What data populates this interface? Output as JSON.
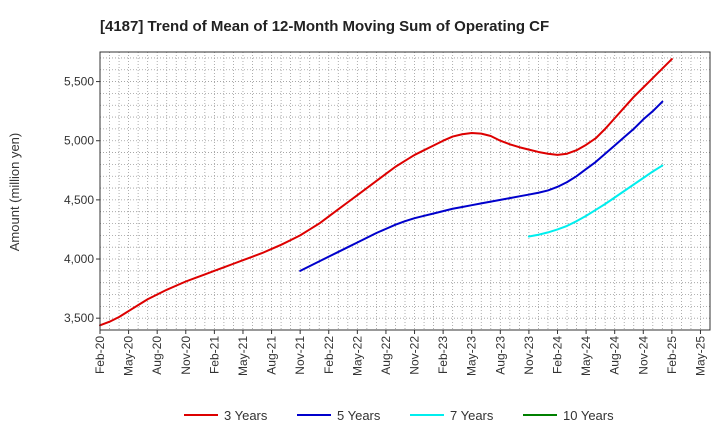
{
  "chart_data": {
    "type": "line",
    "title": "[4187]  Trend of Mean of 12-Month Moving Sum of Operating CF",
    "xlabel": "",
    "ylabel": "Amount (million yen)",
    "ylim": [
      3400,
      5750
    ],
    "yticks": [
      3500,
      4000,
      4500,
      5000,
      5500
    ],
    "ytick_labels": [
      "3,500",
      "4,000",
      "4,500",
      "5,000",
      "5,500"
    ],
    "grid": true,
    "legend_position": "bottom",
    "x_start_month": "Feb-20",
    "x_month_count": 64,
    "x_tick_labels": [
      "Feb-20",
      "May-20",
      "Aug-20",
      "Nov-20",
      "Feb-21",
      "May-21",
      "Aug-21",
      "Nov-21",
      "Feb-22",
      "May-22",
      "Aug-22",
      "Nov-22",
      "Feb-23",
      "May-23",
      "Aug-23",
      "Nov-23",
      "Feb-24",
      "May-24",
      "Aug-24",
      "Nov-24",
      "Feb-25",
      "May-25"
    ],
    "series": [
      {
        "name": "3 Years",
        "color": "#dd0000",
        "start_index": 0,
        "values": [
          3440,
          3470,
          3510,
          3560,
          3610,
          3660,
          3700,
          3740,
          3775,
          3810,
          3840,
          3870,
          3900,
          3930,
          3960,
          3990,
          4020,
          4050,
          4085,
          4120,
          4160,
          4200,
          4250,
          4300,
          4360,
          4420,
          4480,
          4540,
          4600,
          4660,
          4720,
          4780,
          4830,
          4880,
          4920,
          4960,
          5000,
          5035,
          5055,
          5065,
          5060,
          5040,
          5000,
          4970,
          4945,
          4925,
          4905,
          4890,
          4880,
          4890,
          4920,
          4965,
          5020,
          5100,
          5190,
          5280,
          5370,
          5450,
          5530,
          5610,
          5690
        ]
      },
      {
        "name": "5 Years",
        "color": "#0000cc",
        "start_index": 21,
        "values": [
          3900,
          3940,
          3980,
          4020,
          4060,
          4100,
          4140,
          4180,
          4220,
          4255,
          4290,
          4320,
          4345,
          4365,
          4385,
          4405,
          4425,
          4440,
          4455,
          4470,
          4485,
          4500,
          4515,
          4530,
          4545,
          4560,
          4580,
          4610,
          4650,
          4700,
          4760,
          4820,
          4890,
          4960,
          5030,
          5100,
          5180,
          5250,
          5330
        ]
      },
      {
        "name": "7 Years",
        "color": "#00eeee",
        "start_index": 45,
        "values": [
          4190,
          4205,
          4225,
          4250,
          4280,
          4320,
          4365,
          4415,
          4465,
          4520,
          4575,
          4630,
          4685,
          4740,
          4790
        ]
      },
      {
        "name": "10 Years",
        "color": "#008000",
        "start_index": 0,
        "values": []
      }
    ]
  }
}
